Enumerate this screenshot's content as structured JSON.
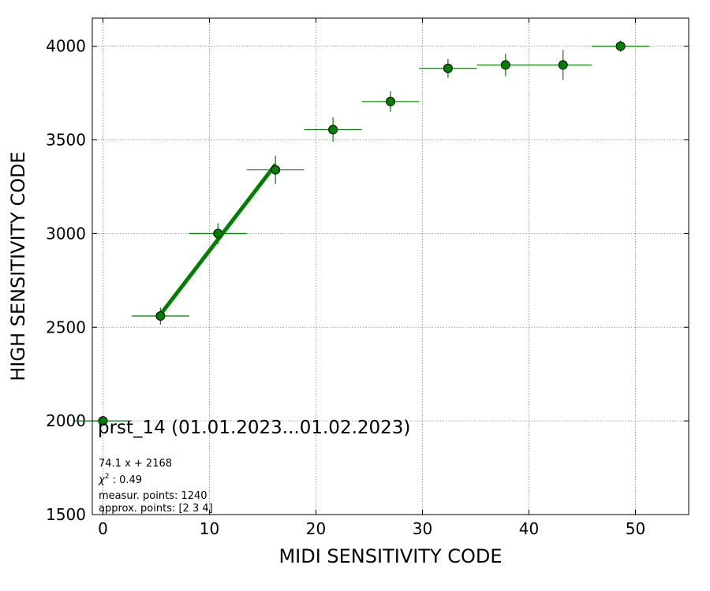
{
  "chart_data": {
    "type": "scatter",
    "xlabel": "MIDI SENSITIVITY CODE",
    "ylabel": "HIGH SENSITIVITY CODE",
    "xlim": [
      -1,
      55
    ],
    "ylim": [
      1500,
      4150
    ],
    "xticks": [
      0,
      10,
      20,
      30,
      40,
      50
    ],
    "yticks": [
      1500,
      2000,
      2500,
      3000,
      3500,
      4000
    ],
    "grid": true,
    "colors": {
      "marker": "#008000",
      "marker_edge": "#000000",
      "fit_line": "#008000",
      "errorbar": "#008000"
    },
    "points": [
      {
        "x": 0.0,
        "y": 2000,
        "xerr": 2.7,
        "yerr": 0
      },
      {
        "x": 5.4,
        "y": 2560,
        "xerr": 2.7,
        "yerr": 45
      },
      {
        "x": 10.8,
        "y": 3000,
        "xerr": 2.7,
        "yerr": 55
      },
      {
        "x": 16.2,
        "y": 3340,
        "xerr": 2.7,
        "yerr": 75
      },
      {
        "x": 21.6,
        "y": 3555,
        "xerr": 2.7,
        "yerr": 65
      },
      {
        "x": 27.0,
        "y": 3705,
        "xerr": 2.7,
        "yerr": 55
      },
      {
        "x": 32.4,
        "y": 3882,
        "xerr": 2.7,
        "yerr": 50
      },
      {
        "x": 37.8,
        "y": 3900,
        "xerr": 2.7,
        "yerr": 60
      },
      {
        "x": 43.2,
        "y": 3900,
        "xerr": 2.7,
        "yerr": 80
      },
      {
        "x": 48.6,
        "y": 4000,
        "xerr": 2.7,
        "yerr": 30
      }
    ],
    "fit": {
      "slope": 74.1,
      "intercept": 2168,
      "x_range": [
        5.4,
        16.2
      ]
    },
    "annotations": {
      "title": "prst_14 (01.01.2023...01.02.2023)",
      "equation": "74.1 x + 2168",
      "chi2_symbol": "χ",
      "chi2_sup": "2",
      "chi2_value": " : 0.49",
      "measur_points": "measur. points: 1240",
      "approx_points": "approx. points: [2 3 4]"
    }
  }
}
